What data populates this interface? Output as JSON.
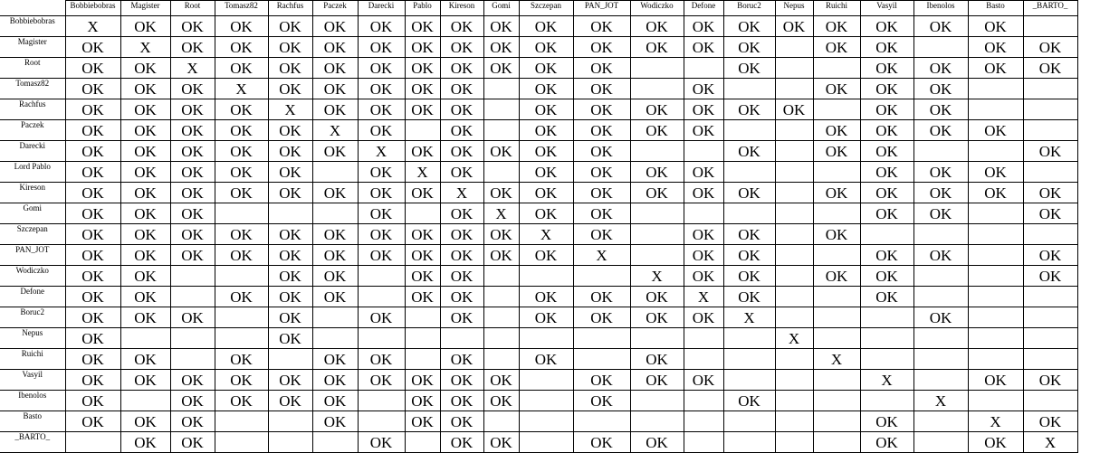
{
  "columns": [
    "Bobbiebobras",
    "Magister",
    "Root",
    "Tomasz82",
    "Rachfus",
    "Paczek",
    "Darecki",
    "Pablo",
    "Kireson",
    "Gomi",
    "Szczepan",
    "PAN_JOT",
    "Wodiczko",
    "Defone",
    "Boruc2",
    "Nepus",
    "Ruichi",
    "Vasyil",
    "Ibenolos",
    "Basto",
    "_BARTO_"
  ],
  "rows": [
    {
      "label": "Bobbiebobras",
      "cells": [
        "X",
        "OK",
        "OK",
        "OK",
        "OK",
        "OK",
        "OK",
        "OK",
        "OK",
        "OK",
        "OK",
        "OK",
        "OK",
        "OK",
        "OK",
        "OK",
        "OK",
        "OK",
        "OK",
        "OK",
        ""
      ]
    },
    {
      "label": "Magister",
      "cells": [
        "OK",
        "X",
        "OK",
        "OK",
        "OK",
        "OK",
        "OK",
        "OK",
        "OK",
        "OK",
        "OK",
        "OK",
        "OK",
        "OK",
        "OK",
        "",
        "OK",
        "OK",
        "",
        "OK",
        "OK"
      ]
    },
    {
      "label": "Root",
      "cells": [
        "OK",
        "OK",
        "X",
        "OK",
        "OK",
        "OK",
        "OK",
        "OK",
        "OK",
        "OK",
        "OK",
        "OK",
        "",
        "",
        "OK",
        "",
        "",
        "OK",
        "OK",
        "OK",
        "OK"
      ]
    },
    {
      "label": "Tomasz82",
      "cells": [
        "OK",
        "OK",
        "OK",
        "X",
        "OK",
        "OK",
        "OK",
        "OK",
        "OK",
        "",
        "OK",
        "OK",
        "",
        "OK",
        "",
        "",
        "OK",
        "OK",
        "OK",
        "",
        ""
      ]
    },
    {
      "label": "Rachfus",
      "cells": [
        "OK",
        "OK",
        "OK",
        "OK",
        "X",
        "OK",
        "OK",
        "OK",
        "OK",
        "",
        "OK",
        "OK",
        "OK",
        "OK",
        "OK",
        "OK",
        "",
        "OK",
        "OK",
        "",
        ""
      ]
    },
    {
      "label": "Paczek",
      "cells": [
        "OK",
        "OK",
        "OK",
        "OK",
        "OK",
        "X",
        "OK",
        "",
        "OK",
        "",
        "OK",
        "OK",
        "OK",
        "OK",
        "",
        "",
        "OK",
        "OK",
        "OK",
        "OK",
        ""
      ]
    },
    {
      "label": "Darecki",
      "cells": [
        "OK",
        "OK",
        "OK",
        "OK",
        "OK",
        "OK",
        "X",
        "OK",
        "OK",
        "OK",
        "OK",
        "OK",
        "",
        "",
        "OK",
        "",
        "OK",
        "OK",
        "",
        "",
        "OK"
      ]
    },
    {
      "label": "Lord Pablo",
      "cells": [
        "OK",
        "OK",
        "OK",
        "OK",
        "OK",
        "",
        "OK",
        "X",
        "OK",
        "",
        "OK",
        "OK",
        "OK",
        "OK",
        "",
        "",
        "",
        "OK",
        "OK",
        "OK",
        ""
      ]
    },
    {
      "label": "Kireson",
      "cells": [
        "OK",
        "OK",
        "OK",
        "OK",
        "OK",
        "OK",
        "OK",
        "OK",
        "X",
        "OK",
        "OK",
        "OK",
        "OK",
        "OK",
        "OK",
        "",
        "OK",
        "OK",
        "OK",
        "OK",
        "OK"
      ]
    },
    {
      "label": "Gomi",
      "cells": [
        "OK",
        "OK",
        "OK",
        "",
        "",
        "",
        "OK",
        "",
        "OK",
        "X",
        "OK",
        "OK",
        "",
        "",
        "",
        "",
        "",
        "OK",
        "OK",
        "",
        "OK"
      ]
    },
    {
      "label": "Szczepan",
      "cells": [
        "OK",
        "OK",
        "OK",
        "OK",
        "OK",
        "OK",
        "OK",
        "OK",
        "OK",
        "OK",
        "X",
        "OK",
        "",
        "OK",
        "OK",
        "",
        "OK",
        "",
        "",
        "",
        ""
      ]
    },
    {
      "label": "PAN_JOT",
      "cells": [
        "OK",
        "OK",
        "OK",
        "OK",
        "OK",
        "OK",
        "OK",
        "OK",
        "OK",
        "OK",
        "OK",
        "X",
        "",
        "OK",
        "OK",
        "",
        "",
        "OK",
        "OK",
        "",
        "OK"
      ]
    },
    {
      "label": "Wodiczko",
      "cells": [
        "OK",
        "OK",
        "",
        "",
        "OK",
        "OK",
        "",
        "OK",
        "OK",
        "",
        "",
        "",
        "X",
        "OK",
        "OK",
        "",
        "OK",
        "OK",
        "",
        "",
        "OK"
      ]
    },
    {
      "label": "Defone",
      "cells": [
        "OK",
        "OK",
        "",
        "OK",
        "OK",
        "OK",
        "",
        "OK",
        "OK",
        "",
        "OK",
        "OK",
        "OK",
        "X",
        "OK",
        "",
        "",
        "OK",
        "",
        "",
        ""
      ]
    },
    {
      "label": "Boruc2",
      "cells": [
        "OK",
        "OK",
        "OK",
        "",
        "OK",
        "",
        "OK",
        "",
        "OK",
        "",
        "OK",
        "OK",
        "OK",
        "OK",
        "X",
        "",
        "",
        "",
        "OK",
        "",
        ""
      ]
    },
    {
      "label": "Nepus",
      "cells": [
        "OK",
        "",
        "",
        "",
        "OK",
        "",
        "",
        "",
        "",
        "",
        "",
        "",
        "",
        "",
        "",
        "X",
        "",
        "",
        "",
        "",
        ""
      ]
    },
    {
      "label": "Ruichi",
      "cells": [
        "OK",
        "OK",
        "",
        "OK",
        "",
        "OK",
        "OK",
        "",
        "OK",
        "",
        "OK",
        "",
        "OK",
        "",
        "",
        "",
        "X",
        "",
        "",
        "",
        ""
      ]
    },
    {
      "label": "Vasyil",
      "cells": [
        "OK",
        "OK",
        "OK",
        "OK",
        "OK",
        "OK",
        "OK",
        "OK",
        "OK",
        "OK",
        "",
        "OK",
        "OK",
        "OK",
        "",
        "",
        "",
        "X",
        "",
        "OK",
        "OK"
      ]
    },
    {
      "label": "Ibenolos",
      "cells": [
        "OK",
        "",
        "OK",
        "OK",
        "OK",
        "OK",
        "",
        "OK",
        "OK",
        "OK",
        "",
        "OK",
        "",
        "",
        "OK",
        "",
        "",
        "",
        "X",
        "",
        ""
      ]
    },
    {
      "label": "Basto",
      "cells": [
        "OK",
        "OK",
        "OK",
        "",
        "",
        "OK",
        "",
        "OK",
        "OK",
        "",
        "",
        "",
        "",
        "",
        "",
        "",
        "",
        "OK",
        "",
        "X",
        "OK"
      ]
    },
    {
      "label": "_BARTO_",
      "cells": [
        "",
        "OK",
        "OK",
        "",
        "",
        "",
        "OK",
        "",
        "OK",
        "OK",
        "",
        "OK",
        "OK",
        "",
        "",
        "",
        "",
        "OK",
        "",
        "OK",
        "X"
      ]
    }
  ]
}
